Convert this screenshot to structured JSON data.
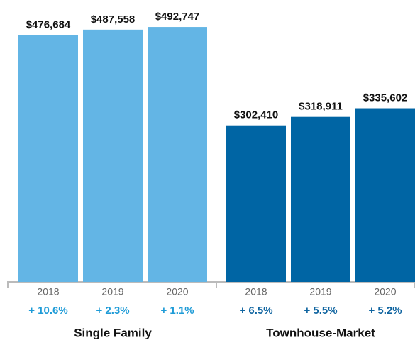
{
  "chart_data": {
    "type": "bar",
    "ylim": [
      0,
      545000
    ],
    "groups": [
      {
        "name": "Single Family",
        "color": "#63b5e5",
        "change_color": "#1e9bd7",
        "categories": [
          "2018",
          "2019",
          "2020"
        ],
        "values": [
          476684,
          487558,
          492747
        ],
        "value_labels": [
          "$476,684",
          "$487,558",
          "$492,747"
        ],
        "change_labels": [
          "+ 10.6%",
          "+ 2.3%",
          "+ 1.1%"
        ]
      },
      {
        "name": "Townhouse-Market",
        "color": "#0065a4",
        "change_color": "#0f64a0",
        "categories": [
          "2018",
          "2019",
          "2020"
        ],
        "values": [
          302410,
          318911,
          335602
        ],
        "value_labels": [
          "$302,410",
          "$318,911",
          "$335,602"
        ],
        "change_labels": [
          "+ 6.5%",
          "+ 5.5%",
          "+ 5.2%"
        ]
      }
    ]
  }
}
